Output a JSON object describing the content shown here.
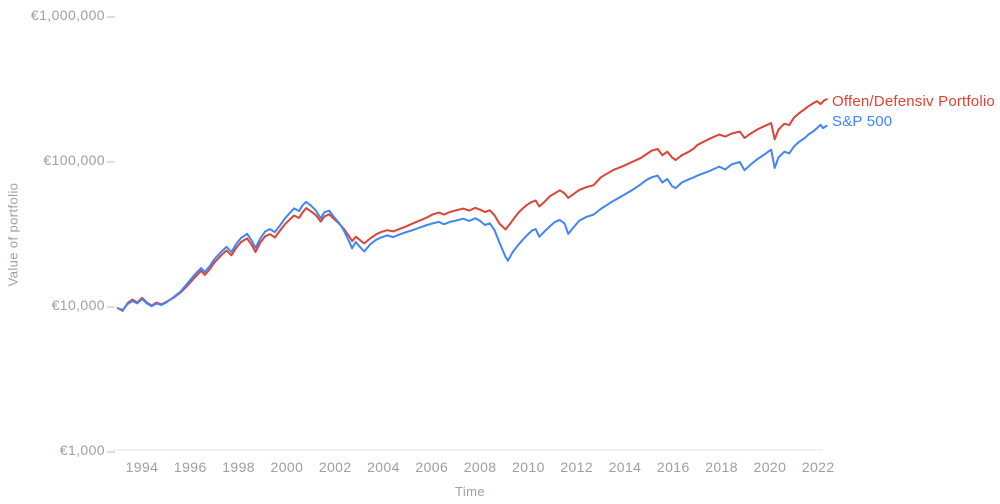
{
  "chart_data": {
    "type": "line",
    "title": "",
    "xlabel": "Time",
    "ylabel": "Value of portfolio",
    "grid": false,
    "legend_position": "right-of-line-ends",
    "x_axis": {
      "range": [
        1992.9,
        2022.5
      ],
      "ticks": [
        1994,
        1996,
        1998,
        2000,
        2002,
        2004,
        2006,
        2008,
        2010,
        2012,
        2014,
        2016,
        2018,
        2020,
        2022
      ]
    },
    "y_axis": {
      "scale": "log",
      "range": [
        1000,
        1000000
      ],
      "ticks": [
        {
          "value": 1000000,
          "label": "€1,000,000"
        },
        {
          "value": 100000,
          "label": "€100,000"
        },
        {
          "value": 10000,
          "label": "€10,000"
        },
        {
          "value": 1000,
          "label": "€1,000"
        }
      ]
    },
    "series": [
      {
        "name": "Offen/Defensiv Portfolio",
        "color": "#db4437",
        "points": [
          [
            1993.0,
            9500
          ],
          [
            1993.2,
            9100
          ],
          [
            1993.4,
            10300
          ],
          [
            1993.6,
            10900
          ],
          [
            1993.8,
            10400
          ],
          [
            1994.0,
            11200
          ],
          [
            1994.2,
            10400
          ],
          [
            1994.4,
            9900
          ],
          [
            1994.6,
            10400
          ],
          [
            1994.8,
            10100
          ],
          [
            1995.0,
            10500
          ],
          [
            1995.3,
            11200
          ],
          [
            1995.6,
            12200
          ],
          [
            1995.8,
            13200
          ],
          [
            1996.0,
            14300
          ],
          [
            1996.2,
            15600
          ],
          [
            1996.45,
            17200
          ],
          [
            1996.6,
            16100
          ],
          [
            1996.8,
            17600
          ],
          [
            1997.0,
            19600
          ],
          [
            1997.25,
            21800
          ],
          [
            1997.5,
            23800
          ],
          [
            1997.7,
            22000
          ],
          [
            1997.9,
            24800
          ],
          [
            1998.1,
            27200
          ],
          [
            1998.35,
            28800
          ],
          [
            1998.55,
            25800
          ],
          [
            1998.7,
            23200
          ],
          [
            1998.9,
            27000
          ],
          [
            1999.1,
            29800
          ],
          [
            1999.3,
            30800
          ],
          [
            1999.5,
            29200
          ],
          [
            1999.7,
            32400
          ],
          [
            1999.9,
            35800
          ],
          [
            2000.1,
            38600
          ],
          [
            2000.3,
            41400
          ],
          [
            2000.5,
            39800
          ],
          [
            2000.65,
            43600
          ],
          [
            2000.8,
            46600
          ],
          [
            2001.0,
            44200
          ],
          [
            2001.2,
            41600
          ],
          [
            2001.4,
            37600
          ],
          [
            2001.55,
            40800
          ],
          [
            2001.75,
            42200
          ],
          [
            2001.95,
            39200
          ],
          [
            2002.15,
            36600
          ],
          [
            2002.35,
            33600
          ],
          [
            2002.55,
            30200
          ],
          [
            2002.7,
            27600
          ],
          [
            2002.85,
            29600
          ],
          [
            2003.0,
            28200
          ],
          [
            2003.2,
            26600
          ],
          [
            2003.45,
            28800
          ],
          [
            2003.7,
            30800
          ],
          [
            2003.9,
            31800
          ],
          [
            2004.15,
            32800
          ],
          [
            2004.4,
            32200
          ],
          [
            2004.65,
            33400
          ],
          [
            2004.9,
            34600
          ],
          [
            2005.2,
            36400
          ],
          [
            2005.5,
            38200
          ],
          [
            2005.8,
            40200
          ],
          [
            2006.05,
            42200
          ],
          [
            2006.3,
            43400
          ],
          [
            2006.5,
            42000
          ],
          [
            2006.75,
            43800
          ],
          [
            2007.0,
            45000
          ],
          [
            2007.3,
            46200
          ],
          [
            2007.55,
            44800
          ],
          [
            2007.8,
            46800
          ],
          [
            2008.0,
            45400
          ],
          [
            2008.2,
            43800
          ],
          [
            2008.4,
            45000
          ],
          [
            2008.6,
            41500
          ],
          [
            2008.8,
            36400
          ],
          [
            2009.05,
            33200
          ],
          [
            2009.25,
            36500
          ],
          [
            2009.45,
            40500
          ],
          [
            2009.65,
            44500
          ],
          [
            2009.9,
            48500
          ],
          [
            2010.1,
            51000
          ],
          [
            2010.3,
            52600
          ],
          [
            2010.45,
            47800
          ],
          [
            2010.65,
            51200
          ],
          [
            2010.9,
            56400
          ],
          [
            2011.1,
            59000
          ],
          [
            2011.3,
            61800
          ],
          [
            2011.5,
            58800
          ],
          [
            2011.65,
            54800
          ],
          [
            2011.85,
            58000
          ],
          [
            2012.1,
            62000
          ],
          [
            2012.4,
            65000
          ],
          [
            2012.7,
            67000
          ],
          [
            2013.0,
            76000
          ],
          [
            2013.5,
            85000
          ],
          [
            2014.0,
            92000
          ],
          [
            2014.3,
            97000
          ],
          [
            2014.65,
            103000
          ],
          [
            2014.9,
            110000
          ],
          [
            2015.1,
            116000
          ],
          [
            2015.35,
            119000
          ],
          [
            2015.55,
            108000
          ],
          [
            2015.75,
            114000
          ],
          [
            2015.95,
            104000
          ],
          [
            2016.1,
            100000
          ],
          [
            2016.35,
            108000
          ],
          [
            2016.6,
            113000
          ],
          [
            2016.85,
            120000
          ],
          [
            2017.0,
            127000
          ],
          [
            2017.5,
            140000
          ],
          [
            2017.9,
            150000
          ],
          [
            2018.15,
            145000
          ],
          [
            2018.4,
            152000
          ],
          [
            2018.75,
            157000
          ],
          [
            2018.95,
            142000
          ],
          [
            2019.2,
            152000
          ],
          [
            2019.5,
            163000
          ],
          [
            2019.8,
            172000
          ],
          [
            2020.05,
            180000
          ],
          [
            2020.2,
            139000
          ],
          [
            2020.35,
            162000
          ],
          [
            2020.6,
            178000
          ],
          [
            2020.8,
            174000
          ],
          [
            2021.0,
            196000
          ],
          [
            2021.2,
            210000
          ],
          [
            2021.45,
            225000
          ],
          [
            2021.6,
            235000
          ],
          [
            2021.8,
            247000
          ],
          [
            2021.95,
            255000
          ],
          [
            2022.1,
            243000
          ],
          [
            2022.25,
            258000
          ],
          [
            2022.35,
            262000
          ]
        ]
      },
      {
        "name": "S&P 500",
        "color": "#4285f4",
        "points": [
          [
            1993.0,
            9500
          ],
          [
            1993.2,
            9250
          ],
          [
            1993.4,
            10150
          ],
          [
            1993.6,
            10650
          ],
          [
            1993.8,
            10250
          ],
          [
            1994.0,
            11000
          ],
          [
            1994.2,
            10250
          ],
          [
            1994.4,
            9800
          ],
          [
            1994.6,
            10250
          ],
          [
            1994.8,
            10000
          ],
          [
            1995.0,
            10400
          ],
          [
            1995.3,
            11300
          ],
          [
            1995.6,
            12400
          ],
          [
            1995.8,
            13600
          ],
          [
            1996.0,
            14900
          ],
          [
            1996.2,
            16300
          ],
          [
            1996.45,
            18000
          ],
          [
            1996.6,
            16900
          ],
          [
            1996.8,
            18500
          ],
          [
            1997.0,
            20700
          ],
          [
            1997.25,
            23000
          ],
          [
            1997.5,
            25200
          ],
          [
            1997.7,
            23200
          ],
          [
            1997.9,
            26400
          ],
          [
            1998.1,
            29000
          ],
          [
            1998.35,
            31000
          ],
          [
            1998.55,
            27600
          ],
          [
            1998.7,
            24800
          ],
          [
            1998.9,
            28800
          ],
          [
            1999.1,
            32200
          ],
          [
            1999.3,
            33400
          ],
          [
            1999.5,
            31800
          ],
          [
            1999.7,
            35200
          ],
          [
            1999.9,
            39200
          ],
          [
            2000.1,
            42800
          ],
          [
            2000.3,
            46400
          ],
          [
            2000.5,
            44400
          ],
          [
            2000.65,
            48800
          ],
          [
            2000.8,
            51400
          ],
          [
            2001.0,
            48400
          ],
          [
            2001.2,
            44800
          ],
          [
            2001.4,
            39600
          ],
          [
            2001.55,
            43600
          ],
          [
            2001.75,
            44800
          ],
          [
            2001.95,
            40400
          ],
          [
            2002.15,
            37000
          ],
          [
            2002.35,
            32800
          ],
          [
            2002.55,
            28000
          ],
          [
            2002.7,
            24600
          ],
          [
            2002.85,
            27200
          ],
          [
            2003.0,
            25400
          ],
          [
            2003.2,
            23400
          ],
          [
            2003.45,
            26200
          ],
          [
            2003.7,
            28200
          ],
          [
            2003.9,
            29200
          ],
          [
            2004.15,
            30200
          ],
          [
            2004.4,
            29400
          ],
          [
            2004.65,
            30600
          ],
          [
            2004.9,
            31600
          ],
          [
            2005.2,
            32800
          ],
          [
            2005.5,
            34200
          ],
          [
            2005.8,
            35600
          ],
          [
            2006.05,
            36600
          ],
          [
            2006.3,
            37400
          ],
          [
            2006.5,
            36000
          ],
          [
            2006.75,
            37400
          ],
          [
            2007.0,
            38200
          ],
          [
            2007.3,
            39400
          ],
          [
            2007.55,
            38000
          ],
          [
            2007.8,
            39600
          ],
          [
            2008.0,
            38000
          ],
          [
            2008.2,
            35600
          ],
          [
            2008.4,
            36600
          ],
          [
            2008.6,
            32800
          ],
          [
            2008.8,
            27000
          ],
          [
            2009.05,
            21500
          ],
          [
            2009.15,
            20200
          ],
          [
            2009.35,
            23200
          ],
          [
            2009.55,
            25600
          ],
          [
            2009.75,
            28000
          ],
          [
            2009.95,
            30400
          ],
          [
            2010.15,
            32600
          ],
          [
            2010.3,
            33400
          ],
          [
            2010.45,
            29600
          ],
          [
            2010.65,
            32000
          ],
          [
            2010.9,
            35000
          ],
          [
            2011.1,
            37400
          ],
          [
            2011.3,
            38600
          ],
          [
            2011.5,
            36400
          ],
          [
            2011.65,
            31000
          ],
          [
            2011.85,
            34000
          ],
          [
            2012.1,
            38000
          ],
          [
            2012.4,
            40500
          ],
          [
            2012.7,
            42000
          ],
          [
            2013.0,
            46000
          ],
          [
            2013.5,
            52000
          ],
          [
            2014.0,
            58000
          ],
          [
            2014.3,
            62000
          ],
          [
            2014.65,
            68000
          ],
          [
            2014.9,
            73000
          ],
          [
            2015.1,
            76000
          ],
          [
            2015.35,
            78000
          ],
          [
            2015.55,
            70000
          ],
          [
            2015.75,
            74000
          ],
          [
            2015.95,
            66000
          ],
          [
            2016.1,
            64000
          ],
          [
            2016.35,
            70000
          ],
          [
            2016.6,
            73000
          ],
          [
            2016.85,
            76000
          ],
          [
            2017.0,
            78000
          ],
          [
            2017.5,
            84000
          ],
          [
            2017.9,
            90000
          ],
          [
            2018.15,
            86000
          ],
          [
            2018.4,
            93000
          ],
          [
            2018.75,
            97000
          ],
          [
            2018.95,
            85000
          ],
          [
            2019.2,
            93000
          ],
          [
            2019.5,
            102000
          ],
          [
            2019.8,
            110000
          ],
          [
            2020.05,
            118000
          ],
          [
            2020.2,
            88000
          ],
          [
            2020.35,
            104000
          ],
          [
            2020.6,
            114000
          ],
          [
            2020.8,
            111000
          ],
          [
            2021.0,
            124000
          ],
          [
            2021.2,
            133000
          ],
          [
            2021.45,
            142000
          ],
          [
            2021.6,
            150000
          ],
          [
            2021.8,
            158000
          ],
          [
            2021.95,
            166000
          ],
          [
            2022.1,
            175000
          ],
          [
            2022.2,
            166000
          ],
          [
            2022.35,
            172000
          ]
        ]
      }
    ]
  }
}
